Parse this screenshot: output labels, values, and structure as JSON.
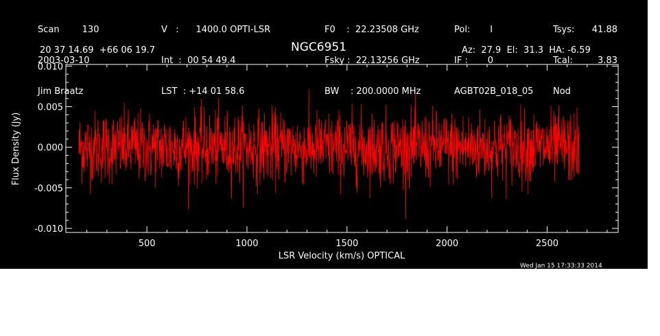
{
  "header": {
    "col1": [
      "Scan        130",
      "2003-03-10",
      "Jim Braatz"
    ],
    "col2": [
      "V   :      1400.0 OPTI-LSR",
      "Int  :  00 54 49.4",
      "LST  : +14 01 58.6"
    ],
    "col3": [
      "F0    :  22.23508 GHz",
      "Fsky :  22.13256 GHz",
      "BW    : 200.0000 MHz"
    ],
    "col4": [
      "Pol:       I",
      "IF :       0",
      "AGBT02B_018_05"
    ],
    "col5_labels": [
      "Tsys:",
      "Tcal:",
      "Nod"
    ],
    "col5_values": [
      "41.88",
      "3.83",
      ""
    ],
    "coords": "20 37 14.69  +66 06 19.7",
    "source": "NGC6951",
    "pointing": "Az:  27.9  El:  31.3  HA: -6.59",
    "timestamp": "Wed Jan 15 17:33:33 2014"
  },
  "colors": {
    "background": "#000000",
    "axes": "#ffffff",
    "trace": "#ff0000"
  },
  "chart_data": {
    "type": "line",
    "title": "NGC6951",
    "xlabel": "LSR Velocity (km/s) OPTICAL",
    "ylabel": "Flux Density (Jy)",
    "xlim": [
      95,
      2855
    ],
    "ylim": [
      -0.0105,
      0.0102
    ],
    "x_ticks": [
      500,
      1000,
      1500,
      2000,
      2500
    ],
    "x_tick_labels": [
      "500",
      "1000",
      "1500",
      "2000",
      "2500"
    ],
    "y_ticks": [
      -0.01,
      -0.005,
      0.0,
      0.005,
      0.01
    ],
    "y_tick_labels": [
      "-0.010",
      "-0.005",
      "0.000",
      "0.005",
      "0.010"
    ],
    "grid": false,
    "series": [
      {
        "color": "#ff0000",
        "x_range": [
          160,
          2660
        ],
        "n_points": 1600,
        "mean": 0.0,
        "rms": 0.0022,
        "max": 0.0082,
        "min": -0.0089
      }
    ]
  }
}
